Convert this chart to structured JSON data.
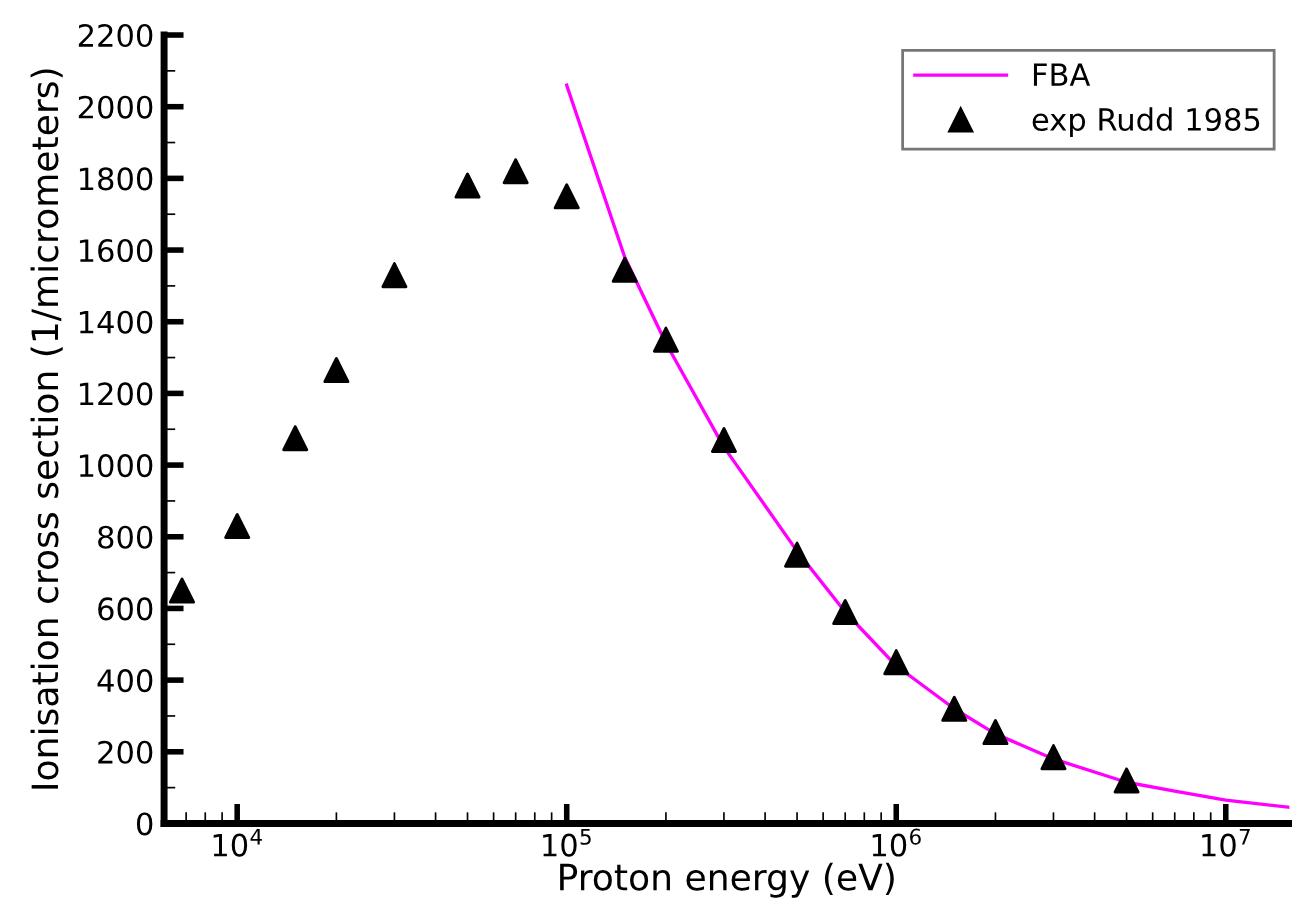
{
  "chart_data": {
    "type": "scatter",
    "xlabel": "Proton energy (eV)",
    "ylabel": "Ionisation cross section (1/micrometers)",
    "log": "x",
    "xlim": [
      6000,
      15600000
    ],
    "ylim": [
      0,
      2200
    ],
    "xticks": [
      {
        "value": 10000,
        "label": "10$^{4}$"
      },
      {
        "value": 100000,
        "label": "10$^{5}$"
      },
      {
        "value": 1000000,
        "label": "10$^{6}$"
      },
      {
        "value": 10000000,
        "label": "10$^{7}$"
      }
    ],
    "yticks": [
      0,
      200,
      400,
      600,
      800,
      1000,
      1200,
      1400,
      1600,
      1800,
      2000,
      2200
    ],
    "grid": false,
    "legend": "top right",
    "series": [
      {
        "name": "FBA",
        "type": "line",
        "color": "#ff00ff",
        "marker": "none",
        "line_style": "solid",
        "x": [
          100000,
          150000,
          200000,
          300000,
          500000,
          700000,
          1000000,
          1500000,
          2000000,
          3000000,
          5000000,
          7000000,
          10000000,
          15600000
        ],
        "values": [
          2060,
          1580,
          1340,
          1050,
          760,
          590,
          440,
          320,
          250,
          180,
          115,
          90,
          65,
          45
        ]
      },
      {
        "name": "exp Rudd 1985",
        "color": "#000000",
        "marker": "triangle",
        "x": [
          6800,
          10000,
          15000,
          20000,
          30000,
          50000,
          70000,
          100000,
          150000,
          200000,
          300000,
          500000,
          700000,
          1000000,
          1500000,
          2000000,
          3000000,
          5000000
        ],
        "values": [
          650,
          830,
          1075,
          1265,
          1530,
          1780,
          1820,
          1750,
          1545,
          1350,
          1070,
          750,
          590,
          450,
          320,
          255,
          185,
          120
        ]
      }
    ]
  }
}
